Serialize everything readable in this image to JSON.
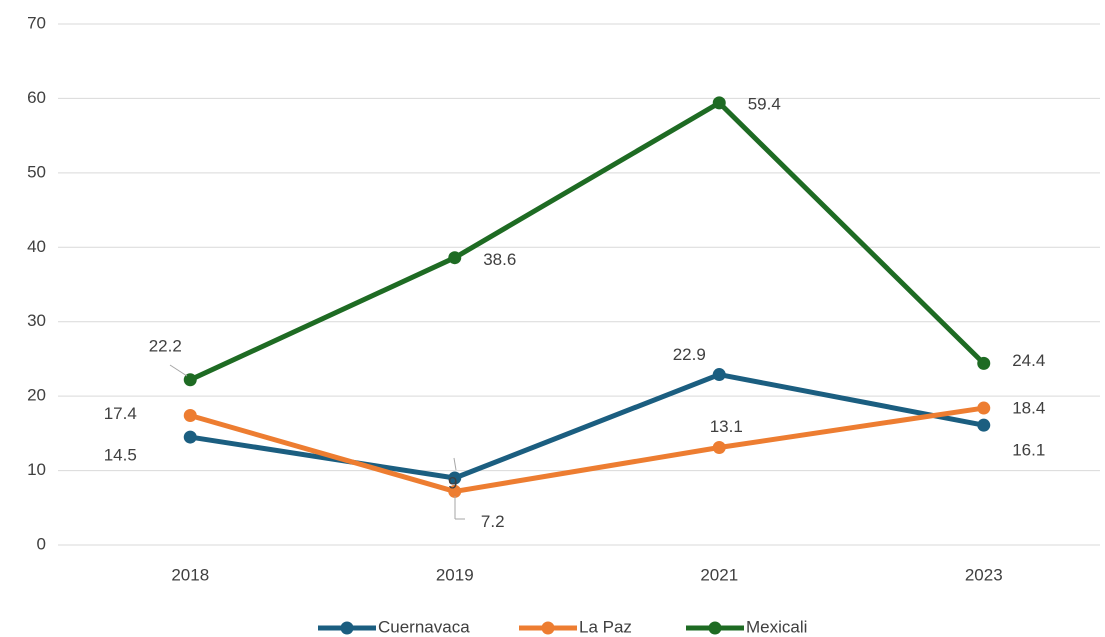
{
  "chart_data": {
    "type": "line",
    "categories": [
      "2018",
      "2019",
      "2021",
      "2023"
    ],
    "series": [
      {
        "name": "Cuernavaca",
        "color": "#1b5e80",
        "values": [
          14.5,
          9,
          22.9,
          16.1
        ]
      },
      {
        "name": "La Paz",
        "color": "#ed7d31",
        "values": [
          17.4,
          7.2,
          13.1,
          18.4
        ]
      },
      {
        "name": "Mexicali",
        "color": "#1e6b23",
        "values": [
          22.2,
          38.6,
          59.4,
          24.4
        ]
      }
    ],
    "ylim": [
      0,
      70
    ],
    "yticks": [
      0,
      10,
      20,
      30,
      40,
      50,
      60,
      70
    ],
    "grid": true,
    "legend": "bottom"
  }
}
